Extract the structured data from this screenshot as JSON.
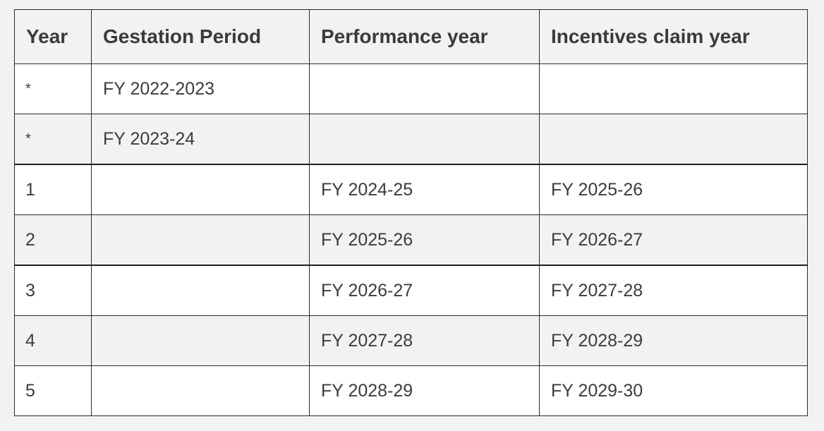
{
  "table": {
    "headers": [
      "Year",
      "Gestation Period",
      "Performance year",
      "Incentives claim year"
    ],
    "rows": [
      [
        "*",
        "FY 2022-2023",
        "",
        ""
      ],
      [
        "*",
        "FY 2023-24",
        "",
        ""
      ],
      [
        "1",
        "",
        "FY 2024-25",
        "FY 2025-26"
      ],
      [
        "2",
        "",
        "FY 2025-26",
        "FY 2026-27"
      ],
      [
        "3",
        "",
        "FY 2026-27",
        "FY 2027-28"
      ],
      [
        "4",
        "",
        "FY 2027-28",
        "FY 2028-29"
      ],
      [
        "5",
        "",
        "FY 2028-29",
        "FY 2029-30"
      ]
    ]
  }
}
